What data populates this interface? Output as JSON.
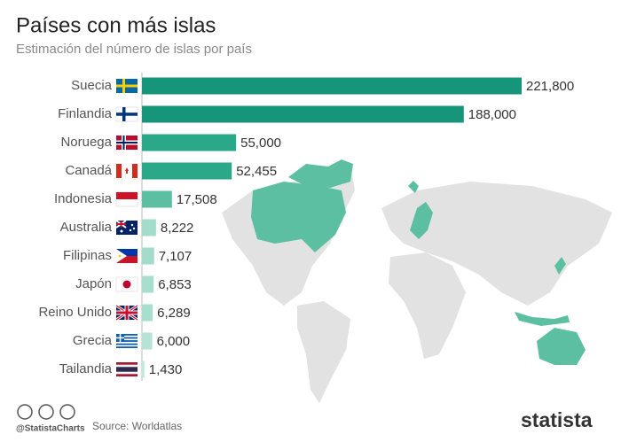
{
  "chart_data": {
    "type": "bar",
    "title": "Países con más islas",
    "subtitle": "Estimación del número de islas por país",
    "categories": [
      "Suecia",
      "Finlandia",
      "Noruega",
      "Canadá",
      "Indonesia",
      "Australia",
      "Filipinas",
      "Japón",
      "Reino Unido",
      "Grecia",
      "Tailandia"
    ],
    "values": [
      221800,
      188000,
      55000,
      52455,
      17508,
      8222,
      7107,
      6853,
      6289,
      6000,
      1430
    ],
    "value_labels": [
      "221,800",
      "188,000",
      "55,000",
      "52,455",
      "17,508",
      "8,222",
      "7,107",
      "6,853",
      "6,289",
      "6,000",
      "1,430"
    ],
    "colors": [
      "#17957a",
      "#17957a",
      "#2aa887",
      "#2aa887",
      "#5cbfa2",
      "#a3dccb",
      "#a3dccb",
      "#a8dece",
      "#a8dece",
      "#b6e3d5",
      "#c2e8dc"
    ],
    "credit": "@StatistaCharts",
    "source": "Source: Worldatlas",
    "brand": "statista"
  }
}
